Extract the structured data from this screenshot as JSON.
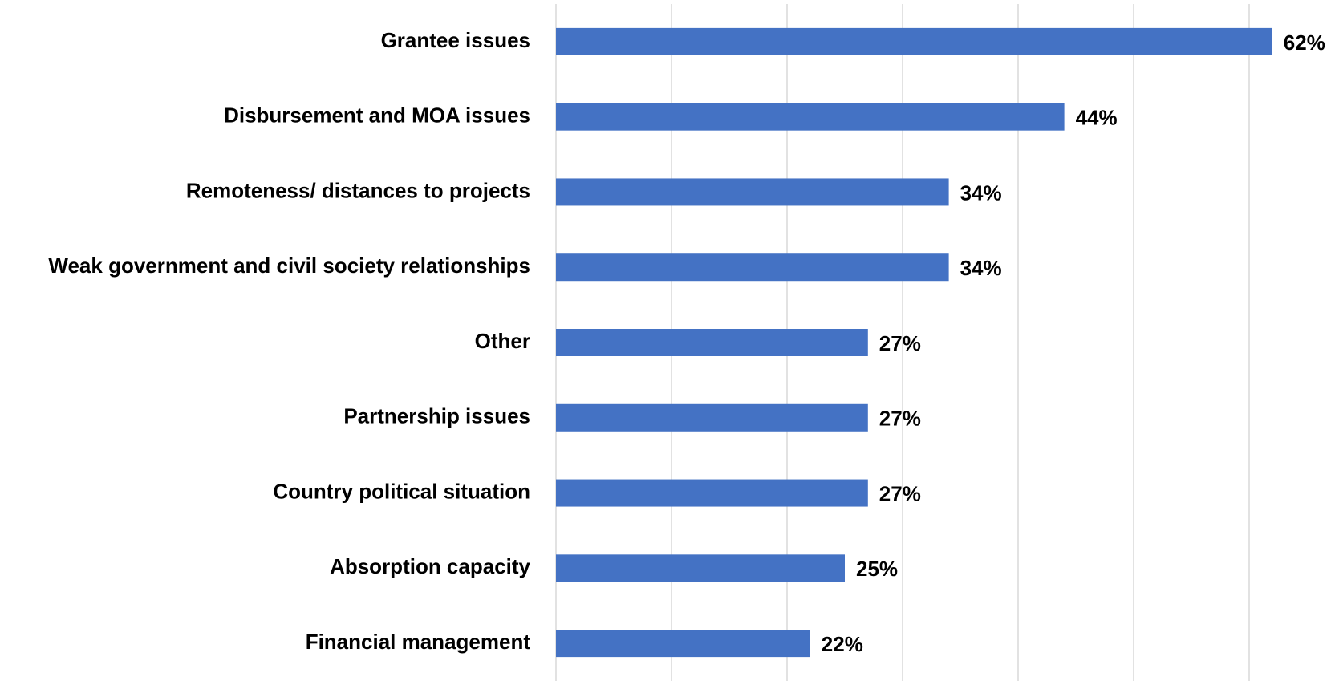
{
  "chart_data": {
    "type": "bar",
    "orientation": "horizontal",
    "categories": [
      "Grantee issues",
      "Disbursement and MOA issues",
      "Remoteness/ distances to projects",
      "Weak government and civil society relationships",
      "Other",
      "Partnership issues",
      "Country political situation",
      "Absorption capacity",
      "Financial management"
    ],
    "values": [
      62,
      44,
      34,
      34,
      27,
      27,
      27,
      25,
      22
    ],
    "value_labels": [
      "62%",
      "44%",
      "34%",
      "34%",
      "27%",
      "27%",
      "27%",
      "25%",
      "22%"
    ],
    "color": "#4472c4",
    "xlim": [
      0,
      65
    ],
    "xticks": [
      0,
      10,
      20,
      30,
      40,
      50,
      60
    ],
    "grid": true
  }
}
